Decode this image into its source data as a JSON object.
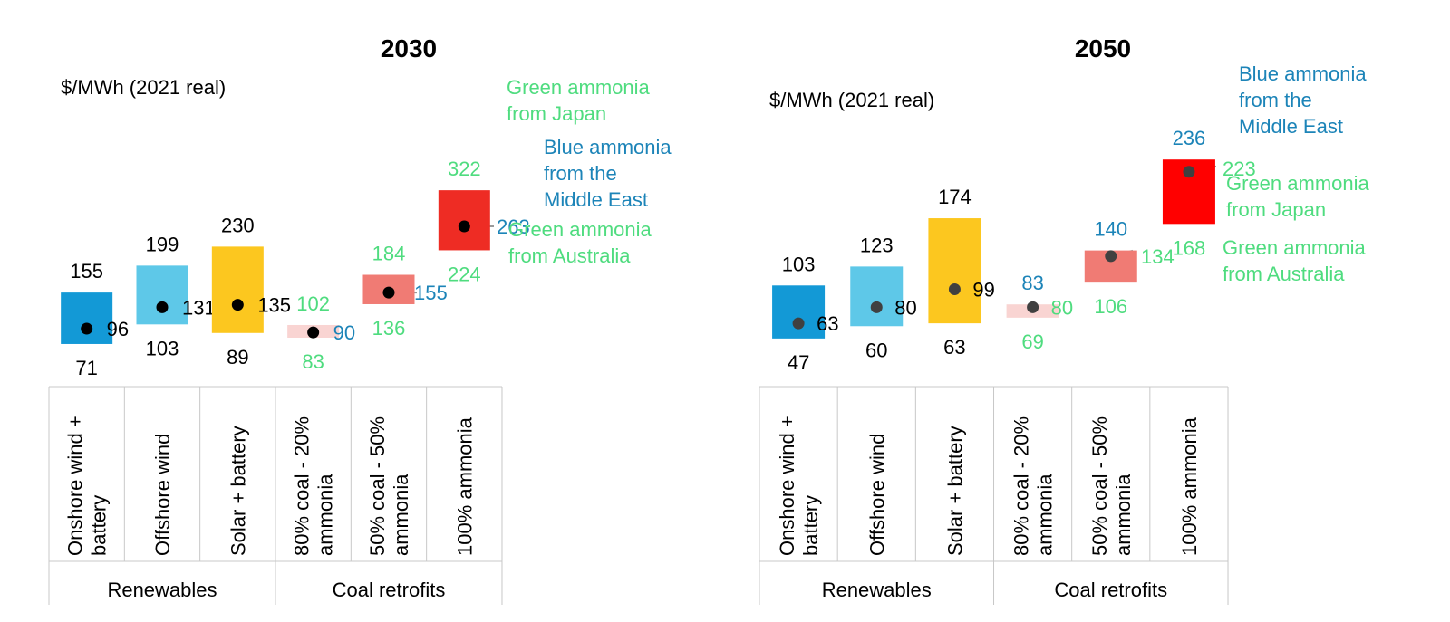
{
  "colors": {
    "black": "#000000",
    "green_label": "#4fdc7f",
    "blue_label": "#1c84b8",
    "grid": "#c8c8c8",
    "marker": "#000000",
    "marker_2050": "#404040"
  },
  "group_labels": [
    "Renewables",
    "Coal retrofits"
  ],
  "chart_data": [
    {
      "type": "range_bar_with_marker",
      "title": "2030",
      "ylabel": "$/MWh (2021 real)",
      "categories": [
        "Onshore wind + battery",
        "Offshore wind",
        "Solar + battery",
        "80% coal - 20% ammonia",
        "50% coal - 50% ammonia",
        "100% ammonia"
      ],
      "groups": [
        {
          "name": "Renewables",
          "categories": [
            0,
            1,
            2
          ]
        },
        {
          "name": "Coal retrofits",
          "categories": [
            3,
            4,
            5
          ]
        }
      ],
      "ranges": [
        {
          "low": 71,
          "high": 155,
          "marker": 96,
          "color": "#1399d6",
          "low_label": "71",
          "high_label": "155",
          "marker_label": "96",
          "low_color": "#000000",
          "high_color": "#000000",
          "marker_color": "#000000"
        },
        {
          "low": 103,
          "high": 199,
          "marker": 131,
          "color": "#5ec8e8",
          "low_label": "103",
          "high_label": "199",
          "marker_label": "131",
          "low_color": "#000000",
          "high_color": "#000000",
          "marker_color": "#000000"
        },
        {
          "low": 89,
          "high": 230,
          "marker": 135,
          "color": "#fcc71f",
          "low_label": "89",
          "high_label": "230",
          "marker_label": "135",
          "low_color": "#000000",
          "high_color": "#000000",
          "marker_color": "#000000"
        },
        {
          "low": 83,
          "high": 102,
          "marker": 90,
          "color": "#f9d4d2",
          "low_label": "83",
          "high_label": "102",
          "marker_label": "90",
          "low_color": "#4fdc7f",
          "high_color": "#4fdc7f",
          "marker_color": "#1c84b8"
        },
        {
          "low": 136,
          "high": 184,
          "marker": 155,
          "color": "#f07b74",
          "low_label": "136",
          "high_label": "184",
          "marker_label": "155",
          "low_color": "#4fdc7f",
          "high_color": "#4fdc7f",
          "marker_color": "#1c84b8"
        },
        {
          "low": 224,
          "high": 322,
          "marker": 263,
          "color": "#ee2c24",
          "low_label": "224",
          "high_label": "322",
          "marker_label": "263",
          "low_color": "#4fdc7f",
          "high_color": "#4fdc7f",
          "marker_color": "#1c84b8"
        }
      ],
      "annotations": [
        {
          "lines": [
            "Green ammonia",
            "from Japan"
          ],
          "color": "#4fdc7f"
        },
        {
          "lines": [
            "Blue ammonia",
            "from the",
            "Middle East"
          ],
          "color": "#1c84b8"
        },
        {
          "lines": [
            "Green ammonia",
            "from Australia"
          ],
          "color": "#4fdc7f"
        }
      ]
    },
    {
      "type": "range_bar_with_marker",
      "title": "2050",
      "ylabel": "$/MWh (2021 real)",
      "categories": [
        "Onshore wind + battery",
        "Offshore wind",
        "Solar + battery",
        "80% coal - 20% ammonia",
        "50% coal - 50% ammonia",
        "100% ammonia"
      ],
      "groups": [
        {
          "name": "Renewables",
          "categories": [
            0,
            1,
            2
          ]
        },
        {
          "name": "Coal retrofits",
          "categories": [
            3,
            4,
            5
          ]
        }
      ],
      "ranges": [
        {
          "low": 47,
          "high": 103,
          "marker": 63,
          "color": "#1399d6",
          "low_label": "47",
          "high_label": "103",
          "marker_label": "63",
          "low_color": "#000000",
          "high_color": "#000000",
          "marker_color": "#000000"
        },
        {
          "low": 60,
          "high": 123,
          "marker": 80,
          "color": "#5ec8e8",
          "low_label": "60",
          "high_label": "123",
          "marker_label": "80",
          "low_color": "#000000",
          "high_color": "#000000",
          "marker_color": "#000000"
        },
        {
          "low": 63,
          "high": 174,
          "marker": 99,
          "color": "#fcc71f",
          "low_label": "63",
          "high_label": "174",
          "marker_label": "99",
          "low_color": "#000000",
          "high_color": "#000000",
          "marker_color": "#000000"
        },
        {
          "low": 69,
          "high": 83,
          "marker": 80,
          "color": "#f9d4d2",
          "low_label": "69",
          "high_label": "83",
          "marker_label": "80",
          "low_color": "#4fdc7f",
          "high_color": "#1c84b8",
          "marker_color": "#4fdc7f"
        },
        {
          "low": 106,
          "high": 140,
          "marker": 134,
          "color": "#f07b74",
          "low_label": "106",
          "high_label": "140",
          "marker_label": "134",
          "low_color": "#4fdc7f",
          "high_color": "#1c84b8",
          "marker_color": "#4fdc7f"
        },
        {
          "low": 168,
          "high": 236,
          "marker": 223,
          "color": "#ff0000",
          "low_label": "168",
          "high_label": "236",
          "marker_label": "223",
          "low_color": "#4fdc7f",
          "high_color": "#1c84b8",
          "marker_color": "#4fdc7f"
        }
      ],
      "annotations": [
        {
          "lines": [
            "Blue ammonia",
            "from the",
            "Middle East"
          ],
          "color": "#1c84b8"
        },
        {
          "lines": [
            "Green ammonia",
            "from Japan"
          ],
          "color": "#4fdc7f"
        },
        {
          "lines": [
            "Green ammonia",
            "from Australia"
          ],
          "color": "#4fdc7f"
        }
      ]
    }
  ]
}
